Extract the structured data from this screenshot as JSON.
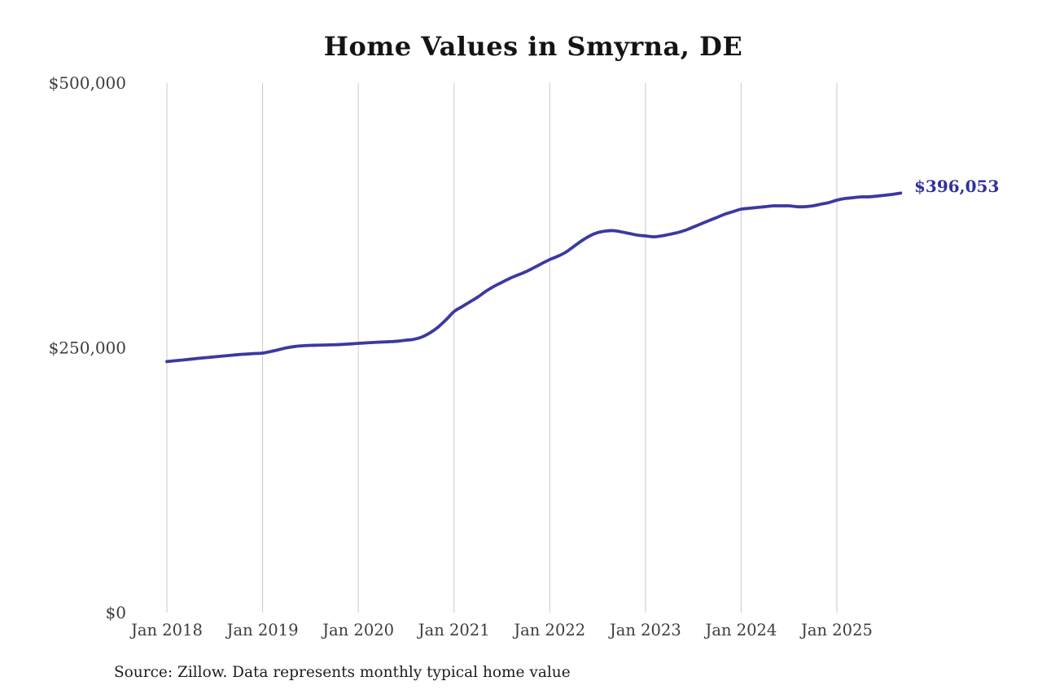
{
  "title": "Home Values in Smyrna, DE",
  "source_note": "Source: Zillow. Data represents monthly typical home value",
  "annotation": {
    "label": "$396,053"
  },
  "colors": {
    "line": "#3b39a1",
    "annotation_text": "#32309d",
    "grid": "#c9c9c9",
    "axis_text": "#3d3d3d",
    "title_text": "#141414",
    "background": "#ffffff"
  },
  "chart_data": {
    "type": "line",
    "title": "Home Values in Smyrna, DE",
    "xlabel": "",
    "ylabel": "",
    "ylim": [
      0,
      500000
    ],
    "grid": "vertical-only",
    "legend": "none",
    "x_start_month": "Jan 2018",
    "x_end_month": "Sep 2025",
    "x_tick_labels": [
      "Jan 2018",
      "Jan 2019",
      "Jan 2020",
      "Jan 2021",
      "Jan 2022",
      "Jan 2023",
      "Jan 2024",
      "Jan 2025"
    ],
    "x_tick_month_indexes": [
      0,
      12,
      24,
      36,
      48,
      60,
      72,
      84
    ],
    "y_ticks": [
      {
        "label": "$0",
        "value": 0
      },
      {
        "label": "$250,000",
        "value": 250000
      },
      {
        "label": "$500,000",
        "value": 500000
      }
    ],
    "end_label": "$396,053",
    "end_value": 396053,
    "series": [
      {
        "name": "Monthly typical home value",
        "monthly_values": [
          237000,
          237800,
          238500,
          239300,
          240100,
          240800,
          241500,
          242200,
          242900,
          243600,
          244100,
          244600,
          245000,
          246500,
          248200,
          250000,
          251200,
          251900,
          252300,
          252500,
          252700,
          252900,
          253200,
          253700,
          254200,
          254700,
          255100,
          255500,
          255800,
          256300,
          257200,
          258100,
          260300,
          264200,
          269500,
          276500,
          284200,
          288800,
          293400,
          298000,
          303400,
          308000,
          311800,
          315600,
          318700,
          321800,
          325600,
          329500,
          333300,
          336400,
          340200,
          345600,
          351000,
          355600,
          358700,
          360200,
          360600,
          359400,
          357900,
          356400,
          355600,
          354800,
          355600,
          357100,
          358700,
          361000,
          364000,
          367100,
          370200,
          373200,
          376300,
          378600,
          380900,
          381700,
          382500,
          383200,
          384000,
          384000,
          384000,
          383200,
          383200,
          384000,
          385600,
          387100,
          389400,
          390900,
          391700,
          392500,
          392500,
          393200,
          394000,
          394900,
          396053
        ]
      }
    ]
  }
}
